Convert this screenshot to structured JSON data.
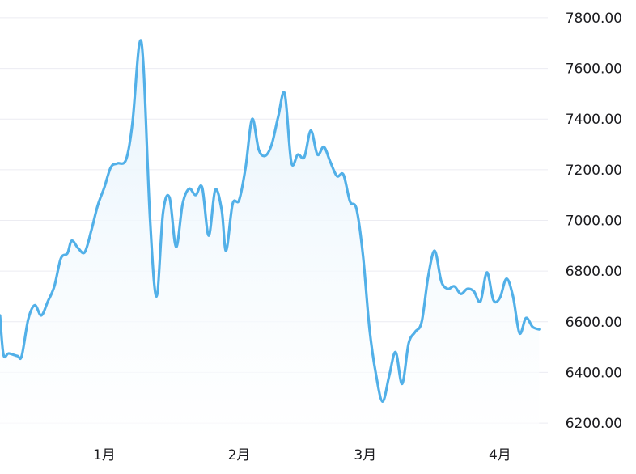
{
  "chart_data": {
    "type": "area",
    "title": "",
    "xlabel": "",
    "ylabel": "",
    "ylim": [
      6130,
      7870
    ],
    "y_ticks": [
      "6200.00",
      "6400.00",
      "6600.00",
      "6800.00",
      "7000.00",
      "7200.00",
      "7400.00",
      "7600.00",
      "7800.00"
    ],
    "x_ticks": [
      {
        "label": "1月",
        "day": 24
      },
      {
        "label": "2月",
        "day": 55
      },
      {
        "label": "3月",
        "day": 84
      },
      {
        "label": "4月",
        "day": 115
      }
    ],
    "x_range": [
      0,
      126
    ],
    "grid": true,
    "legend": "none",
    "colors": {
      "line": "#52b0e8",
      "fill_top": "#e6f3fc",
      "fill_bottom": "#ffffff",
      "grid": "#ececf2"
    },
    "series": [
      {
        "points": [
          [
            0,
            6625
          ],
          [
            0.8,
            6470
          ],
          [
            2,
            6475
          ],
          [
            4,
            6465
          ],
          [
            5,
            6465
          ],
          [
            6.5,
            6610
          ],
          [
            8,
            6665
          ],
          [
            9.5,
            6625
          ],
          [
            11,
            6680
          ],
          [
            12.5,
            6740
          ],
          [
            14,
            6850
          ],
          [
            15.5,
            6870
          ],
          [
            16.5,
            6920
          ],
          [
            18,
            6890
          ],
          [
            19.5,
            6875
          ],
          [
            21,
            6960
          ],
          [
            22.5,
            7060
          ],
          [
            24,
            7130
          ],
          [
            25.5,
            7210
          ],
          [
            27,
            7225
          ],
          [
            29,
            7240
          ],
          [
            30.5,
            7390
          ],
          [
            32,
            7690
          ],
          [
            33,
            7610
          ],
          [
            34.5,
            7010
          ],
          [
            36,
            6700
          ],
          [
            37.5,
            7030
          ],
          [
            39,
            7090
          ],
          [
            40.5,
            6895
          ],
          [
            42,
            7065
          ],
          [
            43.5,
            7125
          ],
          [
            45,
            7100
          ],
          [
            46.5,
            7130
          ],
          [
            48,
            6940
          ],
          [
            49.5,
            7120
          ],
          [
            51,
            7040
          ],
          [
            52,
            6880
          ],
          [
            53.5,
            7065
          ],
          [
            55,
            7080
          ],
          [
            56.5,
            7210
          ],
          [
            58,
            7400
          ],
          [
            59.5,
            7280
          ],
          [
            61,
            7255
          ],
          [
            62.5,
            7300
          ],
          [
            64,
            7410
          ],
          [
            65.5,
            7500
          ],
          [
            67,
            7230
          ],
          [
            68.5,
            7260
          ],
          [
            70,
            7250
          ],
          [
            71.5,
            7355
          ],
          [
            73,
            7260
          ],
          [
            74.5,
            7290
          ],
          [
            76,
            7230
          ],
          [
            77.5,
            7175
          ],
          [
            79,
            7180
          ],
          [
            80.5,
            7075
          ],
          [
            82,
            7045
          ],
          [
            83.5,
            6860
          ],
          [
            85,
            6570
          ],
          [
            86.5,
            6390
          ],
          [
            88,
            6285
          ],
          [
            89.5,
            6385
          ],
          [
            91,
            6480
          ],
          [
            92.5,
            6355
          ],
          [
            94,
            6515
          ],
          [
            95.5,
            6560
          ],
          [
            97,
            6600
          ],
          [
            98.5,
            6780
          ],
          [
            100,
            6880
          ],
          [
            101.5,
            6760
          ],
          [
            103,
            6730
          ],
          [
            104.5,
            6740
          ],
          [
            106,
            6710
          ],
          [
            107.5,
            6730
          ],
          [
            109,
            6720
          ],
          [
            110.5,
            6680
          ],
          [
            112,
            6795
          ],
          [
            113.5,
            6685
          ],
          [
            115,
            6695
          ],
          [
            116.5,
            6770
          ],
          [
            118,
            6700
          ],
          [
            119.5,
            6555
          ],
          [
            121,
            6615
          ],
          [
            122.5,
            6580
          ],
          [
            124,
            6570
          ]
        ]
      }
    ]
  }
}
